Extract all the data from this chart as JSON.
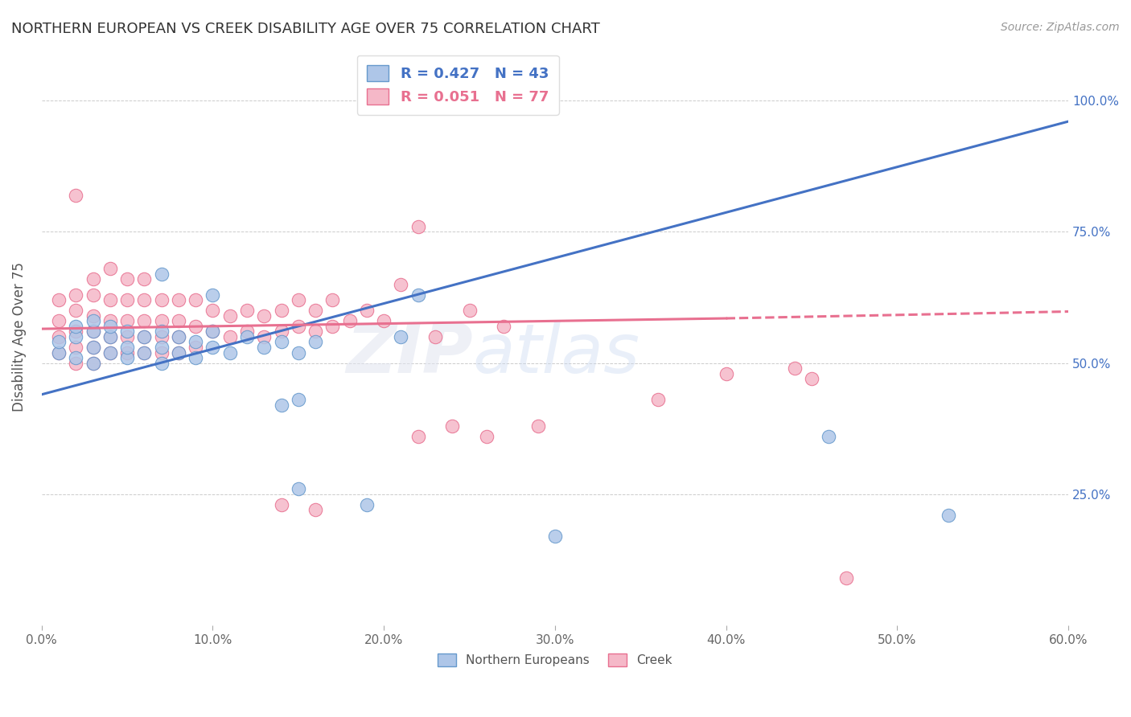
{
  "title": "NORTHERN EUROPEAN VS CREEK DISABILITY AGE OVER 75 CORRELATION CHART",
  "source": "Source: ZipAtlas.com",
  "ylabel_label": "Disability Age Over 75",
  "legend_blue_text": "R = 0.427   N = 43",
  "legend_pink_text": "R = 0.051   N = 77",
  "watermark_zip": "ZIP",
  "watermark_atlas": "atlas",
  "blue_color": "#aec6e8",
  "pink_color": "#f5b8c8",
  "blue_edge_color": "#6699cc",
  "pink_edge_color": "#e87090",
  "blue_line_color": "#4472c4",
  "pink_line_color": "#e87090",
  "xmin": 0.0,
  "xmax": 0.6,
  "ymin": 0.0,
  "ymax": 1.1,
  "xtick_vals": [
    0.0,
    0.1,
    0.2,
    0.3,
    0.4,
    0.5,
    0.6
  ],
  "xtick_labels": [
    "0.0%",
    "10.0%",
    "20.0%",
    "30.0%",
    "40.0%",
    "50.0%",
    "60.0%"
  ],
  "right_ytick_vals": [
    0.25,
    0.5,
    0.75,
    1.0
  ],
  "right_ytick_labels": [
    "25.0%",
    "50.0%",
    "75.0%",
    "100.0%"
  ],
  "blue_scatter": [
    [
      0.01,
      0.52
    ],
    [
      0.01,
      0.54
    ],
    [
      0.02,
      0.51
    ],
    [
      0.02,
      0.55
    ],
    [
      0.02,
      0.57
    ],
    [
      0.03,
      0.5
    ],
    [
      0.03,
      0.53
    ],
    [
      0.03,
      0.56
    ],
    [
      0.03,
      0.58
    ],
    [
      0.04,
      0.52
    ],
    [
      0.04,
      0.55
    ],
    [
      0.04,
      0.57
    ],
    [
      0.05,
      0.51
    ],
    [
      0.05,
      0.53
    ],
    [
      0.05,
      0.56
    ],
    [
      0.06,
      0.52
    ],
    [
      0.06,
      0.55
    ],
    [
      0.07,
      0.5
    ],
    [
      0.07,
      0.53
    ],
    [
      0.07,
      0.56
    ],
    [
      0.08,
      0.52
    ],
    [
      0.08,
      0.55
    ],
    [
      0.09,
      0.51
    ],
    [
      0.09,
      0.54
    ],
    [
      0.1,
      0.53
    ],
    [
      0.1,
      0.56
    ],
    [
      0.11,
      0.52
    ],
    [
      0.12,
      0.55
    ],
    [
      0.13,
      0.53
    ],
    [
      0.14,
      0.54
    ],
    [
      0.15,
      0.52
    ],
    [
      0.16,
      0.54
    ],
    [
      0.07,
      0.67
    ],
    [
      0.1,
      0.63
    ],
    [
      0.14,
      0.42
    ],
    [
      0.15,
      0.43
    ],
    [
      0.15,
      0.26
    ],
    [
      0.19,
      0.23
    ],
    [
      0.21,
      0.55
    ],
    [
      0.22,
      0.63
    ],
    [
      0.3,
      0.17
    ],
    [
      0.46,
      0.36
    ],
    [
      0.53,
      0.21
    ]
  ],
  "pink_scatter": [
    [
      0.01,
      0.52
    ],
    [
      0.01,
      0.55
    ],
    [
      0.01,
      0.58
    ],
    [
      0.01,
      0.62
    ],
    [
      0.02,
      0.5
    ],
    [
      0.02,
      0.53
    ],
    [
      0.02,
      0.56
    ],
    [
      0.02,
      0.6
    ],
    [
      0.02,
      0.63
    ],
    [
      0.02,
      0.82
    ],
    [
      0.03,
      0.5
    ],
    [
      0.03,
      0.53
    ],
    [
      0.03,
      0.56
    ],
    [
      0.03,
      0.59
    ],
    [
      0.03,
      0.63
    ],
    [
      0.03,
      0.66
    ],
    [
      0.04,
      0.52
    ],
    [
      0.04,
      0.55
    ],
    [
      0.04,
      0.58
    ],
    [
      0.04,
      0.62
    ],
    [
      0.04,
      0.68
    ],
    [
      0.05,
      0.52
    ],
    [
      0.05,
      0.55
    ],
    [
      0.05,
      0.58
    ],
    [
      0.05,
      0.62
    ],
    [
      0.05,
      0.66
    ],
    [
      0.06,
      0.52
    ],
    [
      0.06,
      0.55
    ],
    [
      0.06,
      0.58
    ],
    [
      0.06,
      0.62
    ],
    [
      0.06,
      0.66
    ],
    [
      0.07,
      0.52
    ],
    [
      0.07,
      0.55
    ],
    [
      0.07,
      0.58
    ],
    [
      0.07,
      0.62
    ],
    [
      0.08,
      0.52
    ],
    [
      0.08,
      0.55
    ],
    [
      0.08,
      0.58
    ],
    [
      0.08,
      0.62
    ],
    [
      0.09,
      0.53
    ],
    [
      0.09,
      0.57
    ],
    [
      0.09,
      0.62
    ],
    [
      0.1,
      0.56
    ],
    [
      0.1,
      0.6
    ],
    [
      0.11,
      0.55
    ],
    [
      0.11,
      0.59
    ],
    [
      0.12,
      0.56
    ],
    [
      0.12,
      0.6
    ],
    [
      0.13,
      0.55
    ],
    [
      0.13,
      0.59
    ],
    [
      0.14,
      0.56
    ],
    [
      0.14,
      0.6
    ],
    [
      0.15,
      0.57
    ],
    [
      0.15,
      0.62
    ],
    [
      0.16,
      0.56
    ],
    [
      0.16,
      0.6
    ],
    [
      0.17,
      0.57
    ],
    [
      0.17,
      0.62
    ],
    [
      0.18,
      0.58
    ],
    [
      0.19,
      0.6
    ],
    [
      0.2,
      0.58
    ],
    [
      0.21,
      0.65
    ],
    [
      0.22,
      0.76
    ],
    [
      0.23,
      0.55
    ],
    [
      0.25,
      0.6
    ],
    [
      0.27,
      0.57
    ],
    [
      0.14,
      0.23
    ],
    [
      0.16,
      0.22
    ],
    [
      0.22,
      0.36
    ],
    [
      0.24,
      0.38
    ],
    [
      0.26,
      0.36
    ],
    [
      0.29,
      0.38
    ],
    [
      0.36,
      0.43
    ],
    [
      0.4,
      0.48
    ],
    [
      0.44,
      0.49
    ],
    [
      0.45,
      0.47
    ],
    [
      0.47,
      0.09
    ]
  ],
  "blue_line": [
    [
      0.0,
      0.44
    ],
    [
      0.6,
      0.96
    ]
  ],
  "pink_line_solid": [
    [
      0.0,
      0.565
    ],
    [
      0.4,
      0.585
    ]
  ],
  "pink_line_dashed": [
    [
      0.4,
      0.585
    ],
    [
      0.6,
      0.598
    ]
  ]
}
